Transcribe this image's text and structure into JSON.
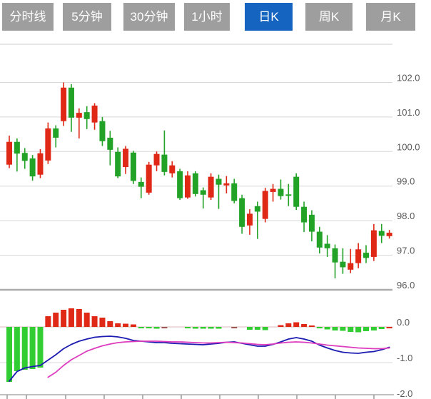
{
  "tabbar": {
    "items": [
      {
        "key": "minute-line",
        "label": "分时线",
        "active": false
      },
      {
        "key": "5min",
        "label": "5分钟",
        "active": false
      },
      {
        "key": "30min",
        "label": "30分钟",
        "active": false
      },
      {
        "key": "1hour",
        "label": "1小时",
        "active": false
      },
      {
        "key": "daily-k",
        "label": "日K",
        "active": true
      },
      {
        "key": "weekly-k",
        "label": "周K",
        "active": false
      },
      {
        "key": "monthly-k",
        "label": "月K",
        "active": false
      }
    ],
    "active_bg": "#1565c0",
    "inactive_bg": "#9e9e9e",
    "text_color": "#ffffff"
  },
  "colors": {
    "background": "#ffffff",
    "grid": "#d8d8d8",
    "axis_strong": "#ababab",
    "zero_line": "#dbb9b9",
    "label": "#5a5a5a"
  },
  "chart_data": {
    "type": "candlestick_with_macd",
    "main": {
      "y_range": [
        96,
        102
      ],
      "grid": true,
      "y_ticks": [
        {
          "label": "102.0",
          "value": 102
        },
        {
          "label": "101.0",
          "value": 101
        },
        {
          "label": "100.0",
          "value": 100
        },
        {
          "label": "99.0",
          "value": 99
        },
        {
          "label": "98.0",
          "value": 98
        },
        {
          "label": "97.0",
          "value": 97
        },
        {
          "label": "96.0",
          "value": 96
        }
      ],
      "up_color": "#e02817",
      "down_color": "#23a228",
      "candles_ohlc": [
        [
          99.62,
          100.46,
          99.52,
          100.28
        ],
        [
          100.28,
          100.38,
          99.42,
          99.94
        ],
        [
          99.96,
          100.1,
          99.5,
          99.73
        ],
        [
          99.8,
          99.9,
          99.16,
          99.28
        ],
        [
          99.33,
          100.07,
          99.23,
          99.95
        ],
        [
          99.74,
          100.84,
          99.64,
          100.67
        ],
        [
          100.67,
          100.76,
          100.12,
          100.4
        ],
        [
          100.88,
          102.0,
          100.74,
          101.85
        ],
        [
          101.85,
          101.95,
          100.57,
          100.98
        ],
        [
          100.98,
          101.25,
          100.38,
          101.12
        ],
        [
          101.14,
          101.31,
          100.65,
          100.94
        ],
        [
          100.84,
          101.4,
          100.63,
          101.33
        ],
        [
          100.88,
          101.0,
          100.16,
          100.3
        ],
        [
          100.4,
          100.6,
          99.6,
          100.05
        ],
        [
          99.99,
          100.12,
          99.23,
          99.28
        ],
        [
          99.55,
          100.16,
          99.35,
          100.08
        ],
        [
          99.97,
          100.02,
          99.06,
          99.15
        ],
        [
          99.12,
          99.25,
          98.65,
          98.98
        ],
        [
          98.81,
          99.7,
          98.75,
          99.62
        ],
        [
          99.6,
          100.0,
          99.43,
          99.93
        ],
        [
          99.91,
          100.61,
          99.31,
          99.41
        ],
        [
          99.37,
          99.72,
          99.25,
          99.6
        ],
        [
          99.43,
          99.5,
          98.6,
          98.65
        ],
        [
          98.67,
          99.43,
          98.63,
          99.31
        ],
        [
          99.37,
          99.43,
          98.7,
          98.77
        ],
        [
          98.88,
          98.96,
          98.35,
          98.75
        ],
        [
          98.67,
          99.37,
          98.6,
          99.27
        ],
        [
          99.21,
          99.33,
          98.34,
          99.04
        ],
        [
          99.02,
          99.29,
          98.79,
          99.08
        ],
        [
          99.08,
          99.21,
          98.5,
          98.57
        ],
        [
          98.65,
          98.75,
          97.62,
          97.82
        ],
        [
          97.86,
          98.33,
          97.59,
          98.2
        ],
        [
          98.42,
          98.55,
          97.47,
          98.26
        ],
        [
          98.05,
          98.95,
          97.95,
          98.86
        ],
        [
          98.83,
          99.06,
          98.55,
          98.92
        ],
        [
          98.92,
          99.19,
          98.61,
          98.71
        ],
        [
          98.76,
          99.06,
          98.42,
          98.72
        ],
        [
          99.27,
          99.37,
          98.31,
          98.4
        ],
        [
          98.4,
          98.55,
          97.67,
          97.95
        ],
        [
          98.17,
          98.3,
          97.4,
          97.68
        ],
        [
          97.68,
          97.82,
          97.05,
          97.22
        ],
        [
          97.33,
          97.58,
          96.95,
          97.2
        ],
        [
          97.2,
          97.31,
          96.33,
          96.79
        ],
        [
          96.81,
          97.2,
          96.46,
          96.65
        ],
        [
          96.58,
          97.18,
          96.48,
          96.77
        ],
        [
          96.77,
          97.35,
          96.62,
          97.17
        ],
        [
          97.07,
          97.29,
          96.77,
          96.92
        ],
        [
          96.95,
          97.9,
          96.83,
          97.72
        ],
        [
          97.7,
          97.9,
          97.35,
          97.56
        ],
        [
          97.55,
          97.73,
          97.48,
          97.65
        ]
      ]
    },
    "sub": {
      "indicator": "MACD",
      "y_range": [
        -2,
        0.6
      ],
      "y_ticks": [
        {
          "label": "0.0",
          "value": 0
        },
        {
          "label": "-1.0",
          "value": -1
        },
        {
          "label": "-2.0",
          "value": -2
        }
      ],
      "hist_colors": {
        "r": "#e02817",
        "g": "#32cd32",
        "m": "#a05555"
      },
      "histogram": [
        {
          "v": -1.54,
          "c": "g"
        },
        {
          "v": -1.24,
          "c": "g"
        },
        {
          "v": -1.2,
          "c": "g"
        },
        {
          "v": -1.18,
          "c": "g"
        },
        {
          "v": -1.14,
          "c": "g"
        },
        {
          "v": 0.3,
          "c": "r"
        },
        {
          "v": 0.4,
          "c": "r"
        },
        {
          "v": 0.48,
          "c": "r"
        },
        {
          "v": 0.52,
          "c": "r"
        },
        {
          "v": 0.5,
          "c": "r"
        },
        {
          "v": 0.4,
          "c": "r"
        },
        {
          "v": 0.3,
          "c": "r"
        },
        {
          "v": 0.26,
          "c": "r"
        },
        {
          "v": 0.16,
          "c": "r"
        },
        {
          "v": 0.1,
          "c": "r"
        },
        {
          "v": 0.09,
          "c": "r"
        },
        {
          "v": 0.07,
          "c": "r"
        },
        {
          "v": -0.04,
          "c": "g"
        },
        {
          "v": -0.04,
          "c": "g"
        },
        {
          "v": -0.05,
          "c": "g"
        },
        {
          "v": -0.04,
          "c": "m"
        },
        {
          "v": 0,
          "c": "g"
        },
        {
          "v": 0,
          "c": "g"
        },
        {
          "v": -0.04,
          "c": "g"
        },
        {
          "v": -0.05,
          "c": "g"
        },
        {
          "v": -0.05,
          "c": "g"
        },
        {
          "v": -0.05,
          "c": "g"
        },
        {
          "v": -0.05,
          "c": "g"
        },
        {
          "v": 0,
          "c": "g"
        },
        {
          "v": -0.04,
          "c": "m"
        },
        {
          "v": 0,
          "c": "g"
        },
        {
          "v": -0.08,
          "c": "g"
        },
        {
          "v": -0.08,
          "c": "g"
        },
        {
          "v": -0.09,
          "c": "g"
        },
        {
          "v": 0,
          "c": "g"
        },
        {
          "v": 0.05,
          "c": "r"
        },
        {
          "v": 0.1,
          "c": "r"
        },
        {
          "v": 0.13,
          "c": "r"
        },
        {
          "v": 0.08,
          "c": "r"
        },
        {
          "v": 0.03,
          "c": "r"
        },
        {
          "v": -0.04,
          "c": "g"
        },
        {
          "v": -0.07,
          "c": "g"
        },
        {
          "v": -0.1,
          "c": "g"
        },
        {
          "v": -0.11,
          "c": "g"
        },
        {
          "v": -0.14,
          "c": "g"
        },
        {
          "v": -0.15,
          "c": "g"
        },
        {
          "v": -0.12,
          "c": "g"
        },
        {
          "v": -0.1,
          "c": "g"
        },
        {
          "v": -0.06,
          "c": "g"
        },
        {
          "v": -0.04,
          "c": "r"
        }
      ],
      "dif": {
        "color": "#1c1cb2",
        "values": [
          -1.52,
          -1.25,
          -1.15,
          -1.11,
          -1.08,
          -0.93,
          -0.78,
          -0.61,
          -0.49,
          -0.4,
          -0.34,
          -0.29,
          -0.27,
          -0.26,
          -0.28,
          -0.32,
          -0.38,
          -0.4,
          -0.42,
          -0.44,
          -0.44,
          -0.46,
          -0.47,
          -0.48,
          -0.49,
          -0.5,
          -0.48,
          -0.46,
          -0.43,
          -0.42,
          -0.46,
          -0.5,
          -0.54,
          -0.54,
          -0.49,
          -0.42,
          -0.34,
          -0.3,
          -0.34,
          -0.4,
          -0.51,
          -0.59,
          -0.66,
          -0.71,
          -0.73,
          -0.74,
          -0.71,
          -0.69,
          -0.64,
          -0.57
        ]
      },
      "dea": {
        "color": "#de3cbe",
        "values": [
          null,
          null,
          null,
          null,
          null,
          -1.41,
          -1.27,
          -1.08,
          -0.92,
          -0.8,
          -0.68,
          -0.6,
          -0.53,
          -0.48,
          -0.44,
          -0.42,
          -0.41,
          -0.4,
          -0.4,
          -0.4,
          -0.41,
          -0.42,
          -0.42,
          -0.43,
          -0.44,
          -0.45,
          -0.45,
          -0.44,
          -0.43,
          -0.44,
          -0.45,
          -0.47,
          -0.49,
          -0.5,
          -0.48,
          -0.45,
          -0.43,
          -0.42,
          -0.43,
          -0.45,
          -0.48,
          -0.51,
          -0.53,
          -0.55,
          -0.57,
          -0.59,
          -0.6,
          -0.61,
          -0.61,
          -0.59
        ]
      }
    }
  }
}
